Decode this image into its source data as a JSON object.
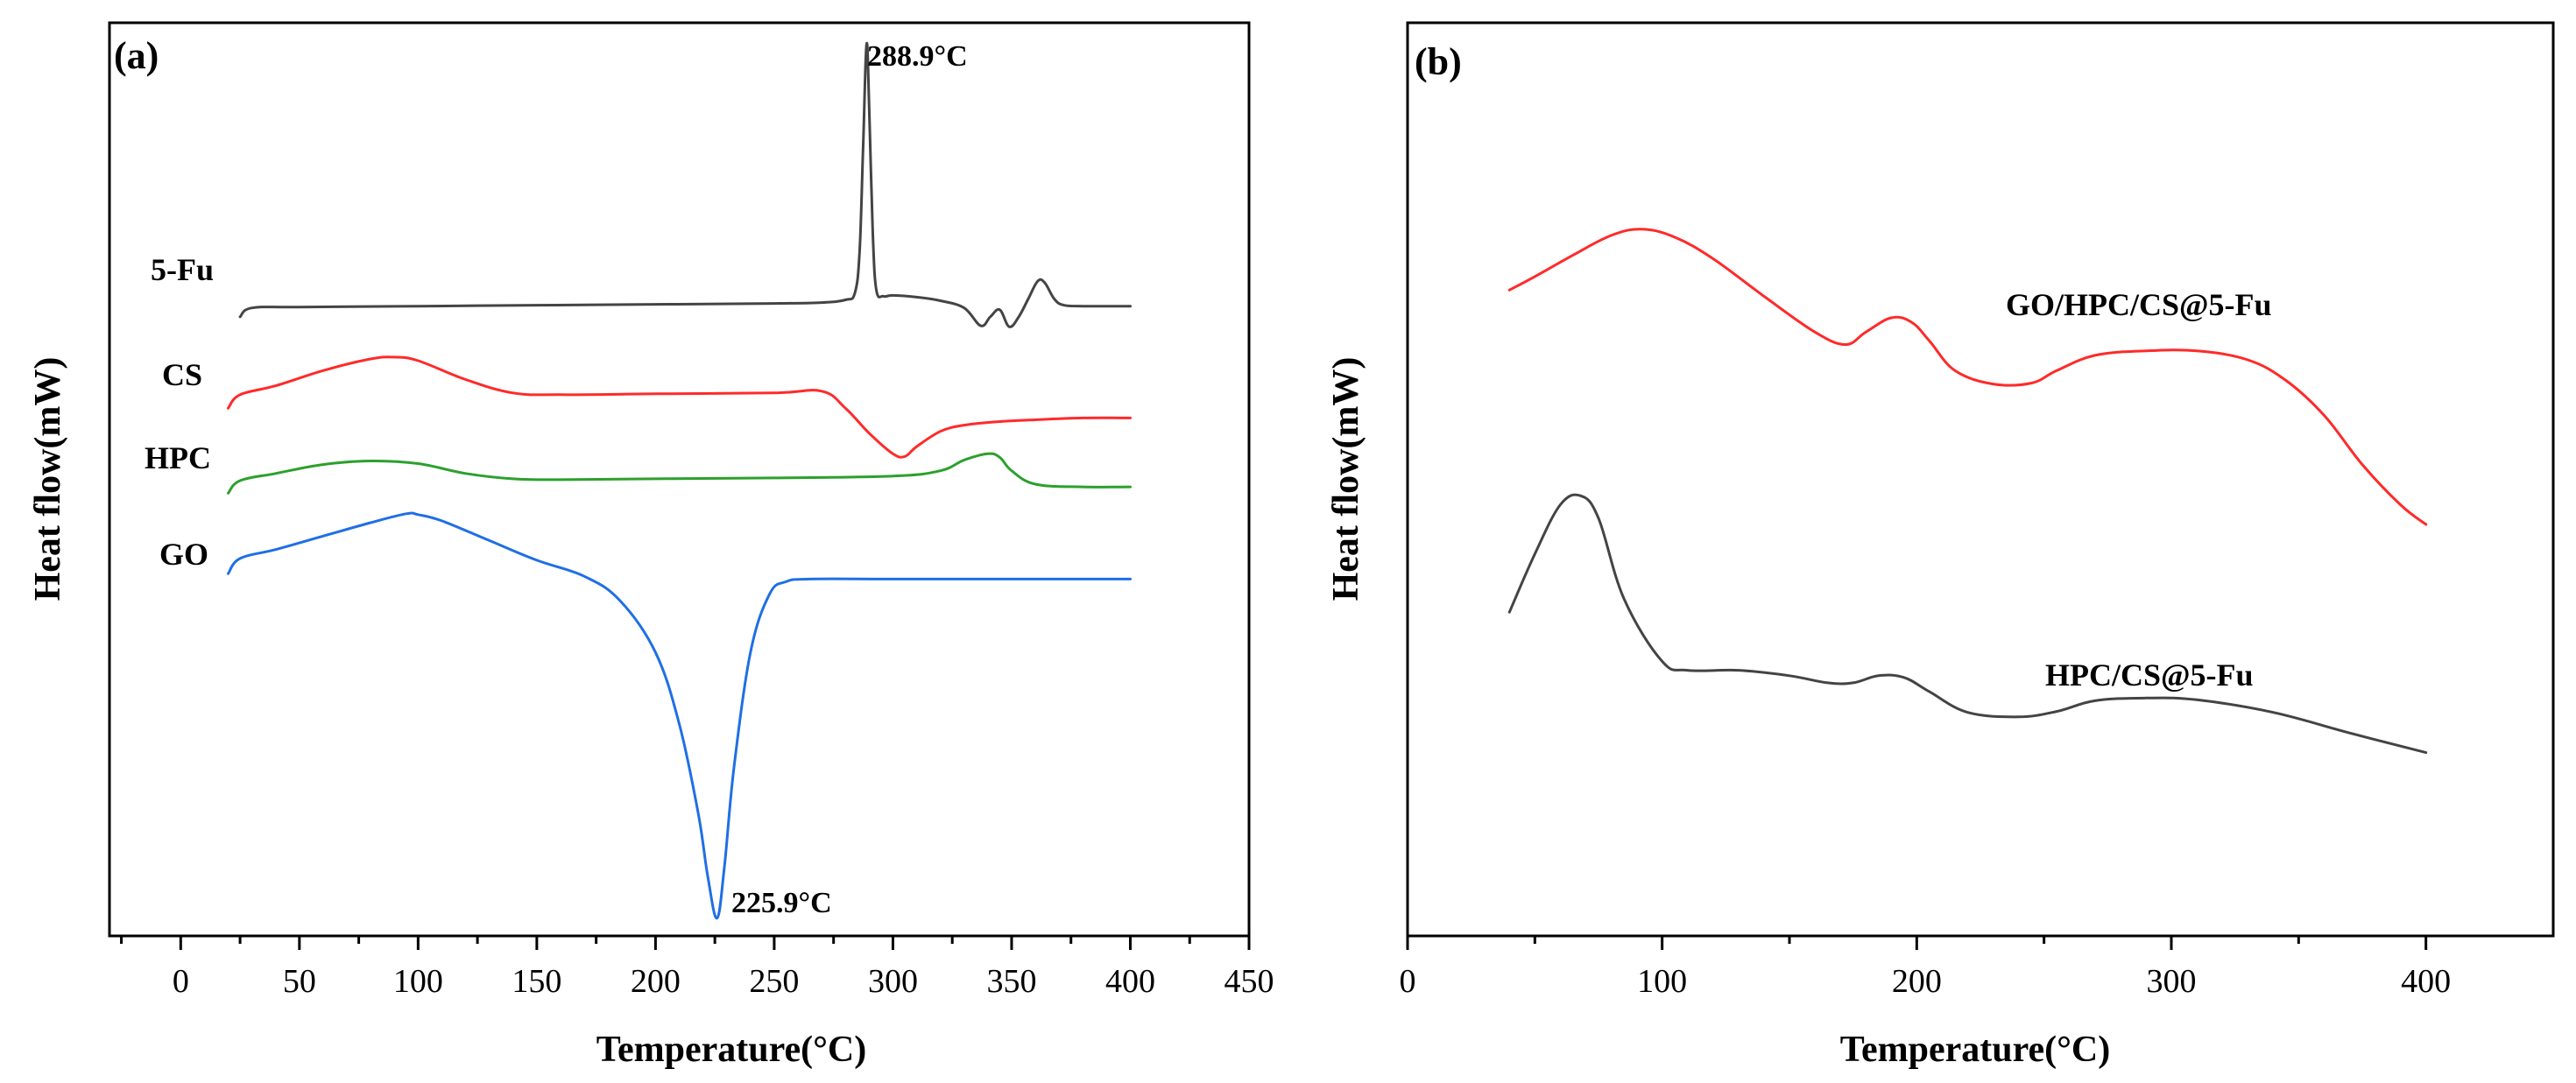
{
  "chart_data": [
    {
      "type": "line",
      "panel_label": "(a)",
      "xlabel": "Temperature(°C)",
      "ylabel": "Heat flow(mW)",
      "xlim": [
        -30,
        450
      ],
      "ylim": [
        0,
        100
      ],
      "x_ticks": [
        0,
        50,
        100,
        150,
        200,
        250,
        300,
        350,
        400,
        450
      ],
      "x_tick_labels": [
        "0",
        "50",
        "100",
        "150",
        "200",
        "250",
        "300",
        "350",
        "400",
        "450"
      ],
      "y_ticks_shown": false,
      "series": [
        {
          "name": "5-Fu",
          "label_text": "5-Fu",
          "color": "#444444",
          "x": [
            25,
            30,
            50,
            100,
            150,
            200,
            250,
            270,
            280,
            284,
            286,
            287.5,
            288.9,
            290,
            291.5,
            293,
            296,
            300,
            310,
            320,
            330,
            337,
            341,
            345,
            349,
            353,
            357,
            361,
            364,
            368,
            372,
            380,
            390,
            400
          ],
          "y": [
            68.5,
            69.5,
            69.6,
            69.7,
            69.8,
            69.9,
            70.0,
            70.1,
            70.4,
            71.2,
            76,
            88,
            99,
            92,
            78,
            71.5,
            70.8,
            70.9,
            70.7,
            70.3,
            69.5,
            67.5,
            68.5,
            69.3,
            67.4,
            68.5,
            70.5,
            72.5,
            72.3,
            70.5,
            69.8,
            69.7,
            69.7,
            69.7
          ]
        },
        {
          "name": "CS",
          "label_text": "CS",
          "color": "#ff2a2a",
          "x": [
            20,
            25,
            40,
            60,
            80,
            90,
            100,
            120,
            140,
            160,
            200,
            250,
            270,
            280,
            290,
            300,
            305,
            310,
            320,
            330,
            345,
            360,
            380,
            400
          ],
          "y": [
            58.3,
            59.8,
            60.8,
            62.5,
            63.8,
            64.0,
            63.6,
            61.5,
            60.0,
            59.8,
            59.9,
            60.0,
            60.2,
            58.3,
            55.5,
            53.2,
            52.9,
            54.0,
            55.7,
            56.4,
            56.8,
            57.0,
            57.2,
            57.2
          ]
        },
        {
          "name": "HPC",
          "label_text": "HPC",
          "color": "#2ca02c",
          "x": [
            20,
            25,
            40,
            60,
            80,
            100,
            120,
            140,
            160,
            200,
            250,
            300,
            320,
            330,
            340,
            345,
            350,
            360,
            380,
            400
          ],
          "y": [
            48.8,
            50.2,
            51.0,
            52.0,
            52.4,
            52.1,
            51.0,
            50.4,
            50.3,
            50.4,
            50.5,
            50.7,
            51.3,
            52.5,
            53.2,
            52.8,
            51.3,
            49.8,
            49.5,
            49.5
          ]
        },
        {
          "name": "GO",
          "label_text": "GO",
          "color": "#1f6fe5",
          "x": [
            20,
            25,
            40,
            60,
            80,
            95,
            100,
            110,
            130,
            150,
            170,
            185,
            200,
            210,
            218,
            222,
            225.9,
            229,
            233,
            240,
            248,
            255,
            265,
            300,
            350,
            400
          ],
          "y": [
            39.8,
            41.5,
            42.5,
            44.0,
            45.5,
            46.5,
            46.4,
            45.7,
            43.5,
            41.3,
            39.5,
            36.8,
            31,
            23,
            13,
            6,
            1.3,
            7,
            18,
            31,
            37.5,
            38.9,
            39.2,
            39.2,
            39.2,
            39.2
          ]
        }
      ],
      "annotations": [
        {
          "text": "288.9°C",
          "x": 288.9,
          "y": 99
        },
        {
          "text": "225.9°C",
          "x": 225.9,
          "y": 1.3
        }
      ]
    },
    {
      "type": "line",
      "panel_label": "(b)",
      "xlabel": "Temperature(°C)",
      "ylabel": "Heat flow(mW)",
      "xlim": [
        0,
        450
      ],
      "ylim": [
        0,
        100
      ],
      "x_ticks": [
        0,
        100,
        200,
        300,
        400
      ],
      "x_tick_labels": [
        "0",
        "100",
        "200",
        "300",
        "400"
      ],
      "y_ticks_shown": false,
      "series": [
        {
          "name": "GO/HPC/CS@5-Fu",
          "label_text": "GO/HPC/CS@5-Fu",
          "color": "#ff2a2a",
          "x": [
            40,
            50,
            65,
            80,
            92,
            105,
            120,
            140,
            160,
            172,
            180,
            190,
            198,
            205,
            215,
            230,
            245,
            255,
            270,
            290,
            310,
            330,
            345,
            360,
            375,
            390,
            400
          ],
          "y": [
            71.5,
            73.0,
            75.4,
            77.6,
            78.3,
            77.4,
            75.0,
            70.8,
            66.8,
            65.4,
            66.8,
            68.4,
            67.9,
            65.8,
            62.5,
            61.0,
            61.1,
            62.5,
            64.2,
            64.7,
            64.7,
            63.7,
            61.4,
            57.5,
            52.0,
            47.5,
            45.3
          ]
        },
        {
          "name": "HPC/CS@5-Fu",
          "label_text": "HPC/CS@5-Fu",
          "color": "#444444",
          "x": [
            40,
            50,
            60,
            68,
            75,
            85,
            100,
            110,
            130,
            150,
            165,
            175,
            185,
            195,
            205,
            220,
            240,
            255,
            270,
            290,
            310,
            340,
            370,
            400
          ],
          "y": [
            35.5,
            42.0,
            47.5,
            48.5,
            46.0,
            37.0,
            30.0,
            29.0,
            29.0,
            28.4,
            27.6,
            27.6,
            28.4,
            28.2,
            26.6,
            24.3,
            23.8,
            24.4,
            25.6,
            25.9,
            25.7,
            24.3,
            22.0,
            19.8
          ]
        }
      ]
    }
  ]
}
